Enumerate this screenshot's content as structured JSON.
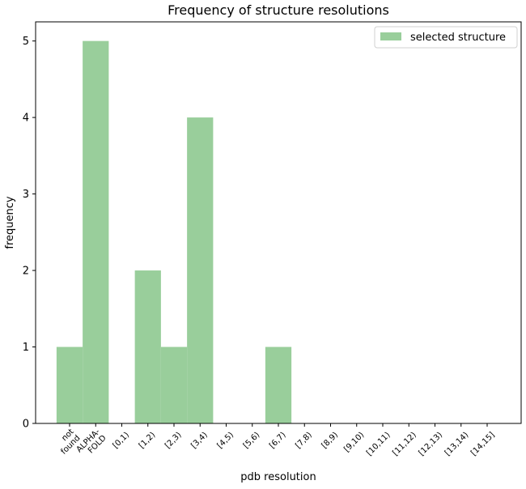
{
  "chart_data": {
    "type": "bar",
    "title": "Frequency of structure resolutions",
    "xlabel": "pdb resolution",
    "ylabel": "frequency",
    "categories": [
      [
        "not",
        "found"
      ],
      [
        "ALPHA-",
        "FOLD"
      ],
      [
        "[0,1)"
      ],
      [
        "[1,2)"
      ],
      [
        "[2,3)"
      ],
      [
        "[3,4)"
      ],
      [
        "[4,5)"
      ],
      [
        "[5,6)"
      ],
      [
        "[6,7)"
      ],
      [
        "[7,8)"
      ],
      [
        "[8,9)"
      ],
      [
        "[9,10)"
      ],
      [
        "[10,11)"
      ],
      [
        "[11,12)"
      ],
      [
        "[12,13)"
      ],
      [
        "[13,14)"
      ],
      [
        "[14,15]"
      ]
    ],
    "series": [
      {
        "name": "selected structure",
        "color": "#99ce9b",
        "values": [
          1,
          5,
          0,
          2,
          1,
          4,
          0,
          0,
          1,
          0,
          0,
          0,
          0,
          0,
          0,
          0,
          0
        ]
      }
    ],
    "ylim": [
      0,
      5.25
    ],
    "yticks": [
      "0",
      "1",
      "2",
      "3",
      "4",
      "5"
    ],
    "legend_position": "top-right",
    "grid": false
  }
}
